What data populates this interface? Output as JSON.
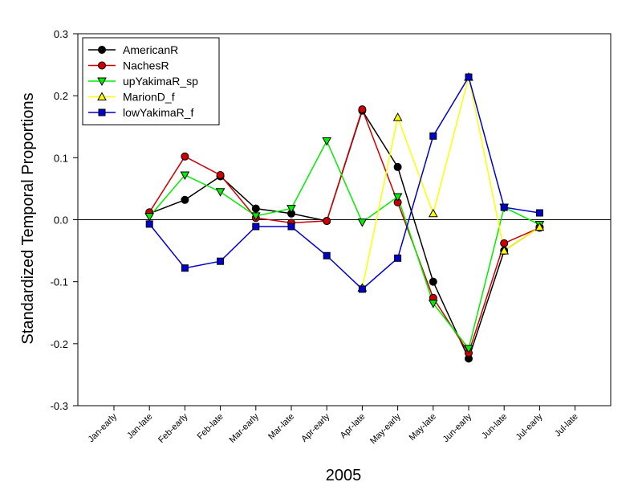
{
  "chart_data": {
    "type": "line",
    "xlabel": "2005",
    "ylabel": "Standardized Temporal Proportions",
    "ylim": [
      -0.3,
      0.3
    ],
    "yticks": [
      "-0.3",
      "-0.2",
      "-0.1",
      "0.0",
      "0.1",
      "0.2",
      "0.3"
    ],
    "categories": [
      "Jan-early",
      "Jan-late",
      "Feb-early",
      "Feb-late",
      "Mar-early",
      "Mar-late",
      "Apr-early",
      "Apr-late",
      "May-early",
      "May-late",
      "Jun-early",
      "Jun-late",
      "Jul-early",
      "Jul-late"
    ],
    "reference_line_y": 0,
    "grid": false,
    "legend_position": "top-left",
    "series": [
      {
        "name": "AmericanR",
        "marker": "circle",
        "line_color": "#000000",
        "marker_fill": "#000000",
        "values": [
          null,
          0.01,
          0.032,
          0.07,
          0.018,
          0.01,
          -0.002,
          0.176,
          0.085,
          -0.1,
          -0.224,
          -0.05,
          -0.012,
          null
        ]
      },
      {
        "name": "NachesR",
        "marker": "circle",
        "line_color": "#cc0000",
        "marker_fill": "#cc0000",
        "values": [
          null,
          0.012,
          0.102,
          0.072,
          0.003,
          -0.005,
          -0.002,
          0.178,
          0.028,
          -0.126,
          -0.215,
          -0.038,
          -0.013,
          null
        ]
      },
      {
        "name": "upYakimaR_sp",
        "marker": "triangle-down",
        "line_color": "#00ee00",
        "marker_fill": "#00ee00",
        "values": [
          null,
          0.005,
          0.072,
          0.045,
          0.006,
          0.018,
          0.127,
          -0.004,
          0.037,
          -0.135,
          -0.208,
          0.02,
          -0.008,
          null
        ]
      },
      {
        "name": "MarionD_f",
        "marker": "triangle-up",
        "line_color": "#ffff00",
        "marker_fill": "#ffff00",
        "values": [
          null,
          null,
          null,
          null,
          null,
          null,
          null,
          -0.11,
          0.165,
          0.01,
          0.23,
          -0.05,
          -0.012,
          null
        ]
      },
      {
        "name": "lowYakimaR_f",
        "marker": "square",
        "line_color": "#0000cc",
        "marker_fill": "#0000cc",
        "values": [
          null,
          -0.007,
          -0.078,
          -0.067,
          -0.011,
          -0.011,
          -0.058,
          -0.112,
          -0.062,
          0.135,
          0.23,
          0.02,
          0.011,
          null
        ]
      }
    ]
  }
}
